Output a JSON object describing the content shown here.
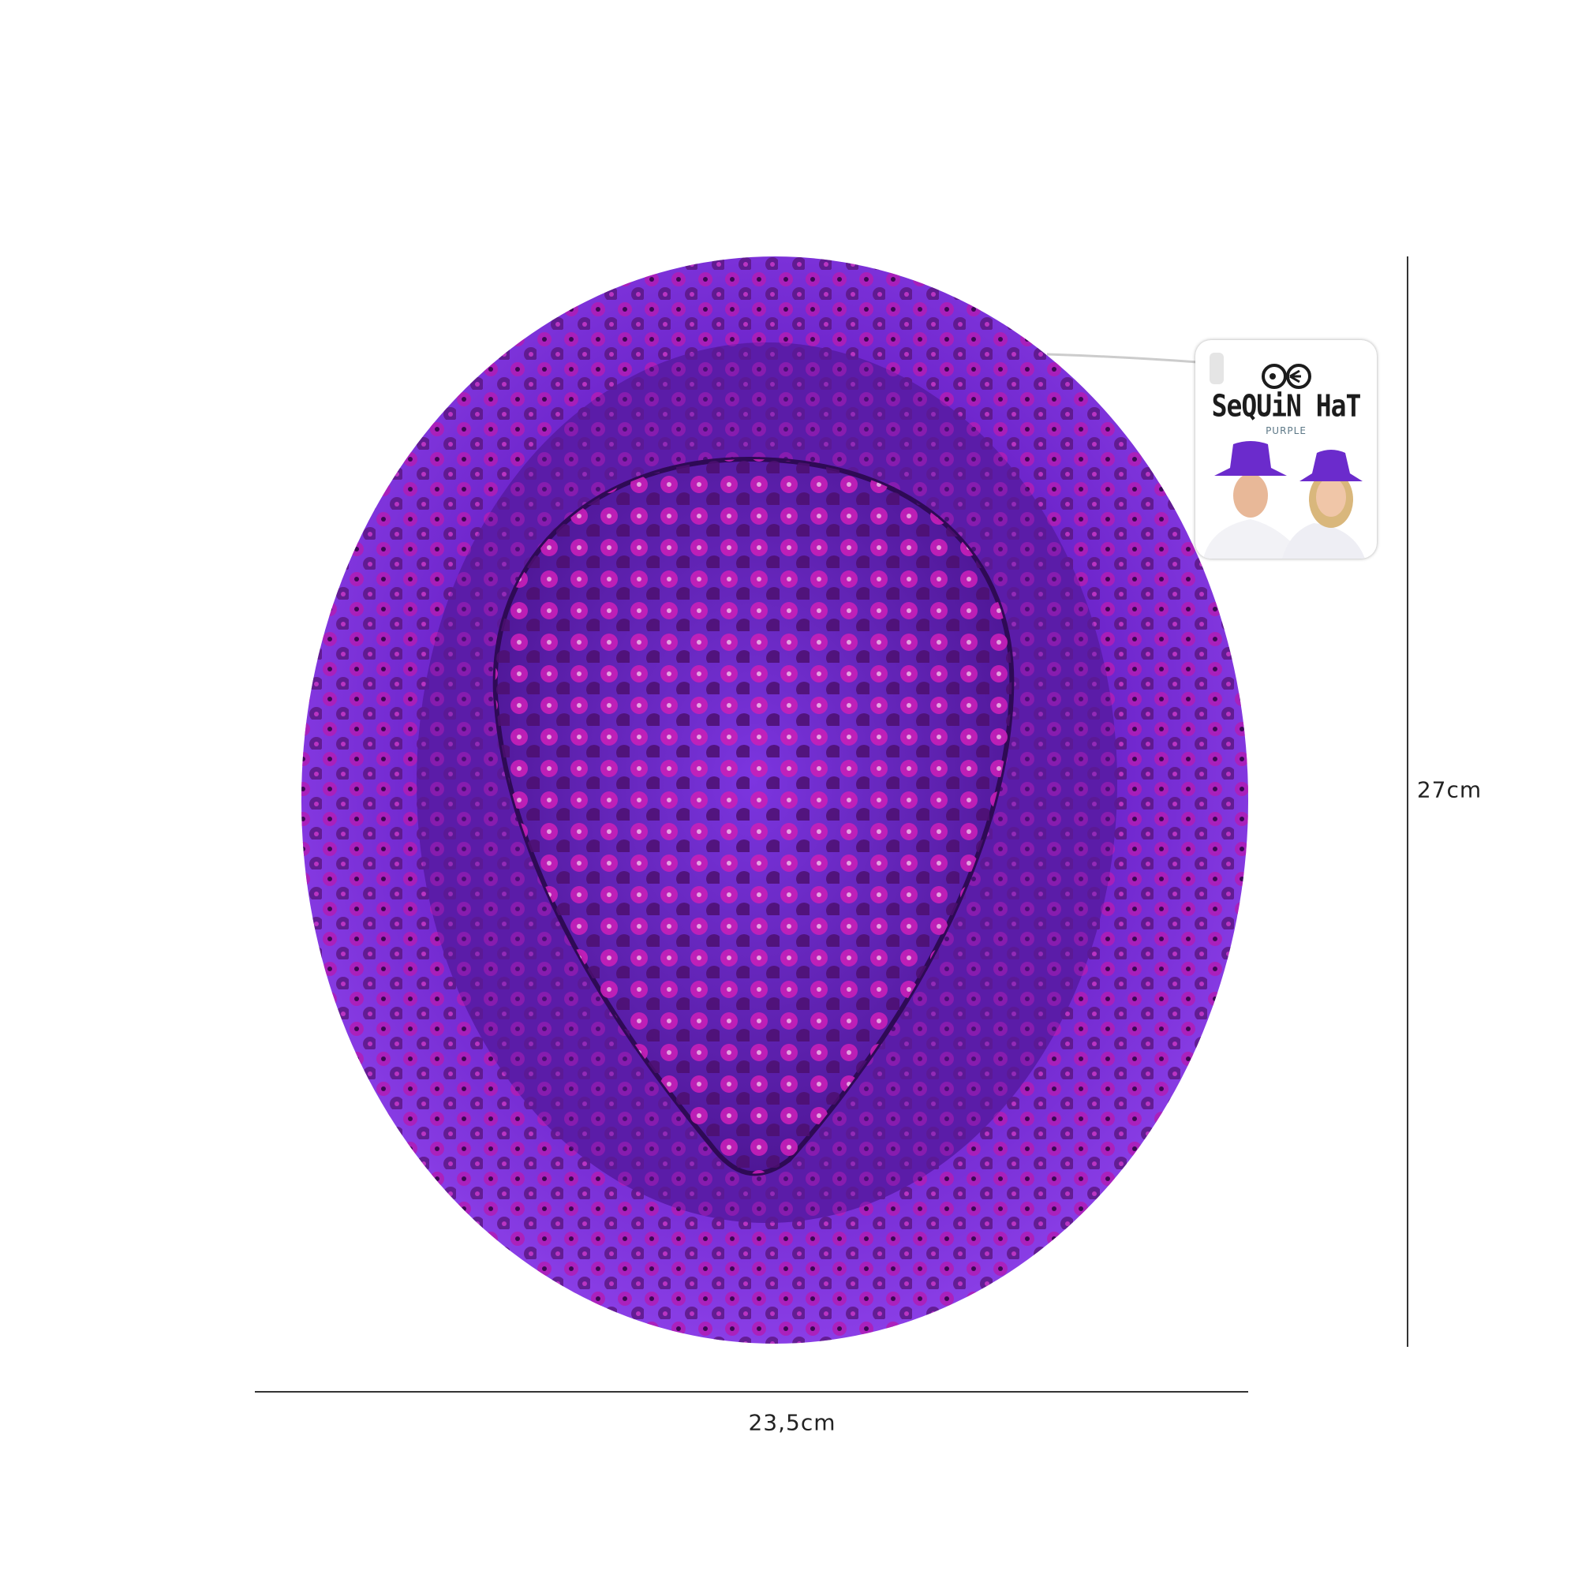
{
  "product": {
    "name": "Sequin Hat",
    "color_name": "Purple",
    "main_color": "#7a2fd6",
    "sequin_color": "#c21ab8"
  },
  "label_card": {
    "brand_logo_icon": "eyes-logo-icon",
    "title": "SeQUiN HaT",
    "subtitle": "PURPLE"
  },
  "dimensions": {
    "height": "27cm",
    "width": "23,5cm"
  }
}
